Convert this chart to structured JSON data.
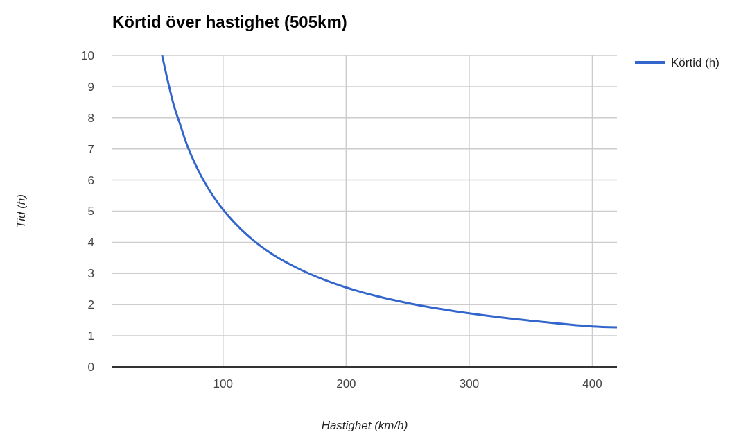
{
  "chart_data": {
    "type": "line",
    "title": "Körtid över hastighet (505km)",
    "xlabel": "Hastighet (km/h)",
    "ylabel": "Tid (h)",
    "x": [
      50.5,
      55,
      60,
      65,
      70,
      80,
      90,
      100,
      110,
      120,
      140,
      160,
      180,
      200,
      225,
      250,
      275,
      300,
      350,
      400,
      420
    ],
    "series": [
      {
        "name": "Körtid (h)",
        "color": "#3366cc",
        "values": [
          10,
          9.2,
          8.4,
          7.8,
          7.2,
          6.3,
          5.6,
          5.05,
          4.6,
          4.22,
          3.62,
          3.18,
          2.83,
          2.55,
          2.27,
          2.05,
          1.87,
          1.72,
          1.48,
          1.3,
          1.27
        ]
      }
    ],
    "xlim": [
      10,
      420
    ],
    "xticks": [
      100,
      200,
      300,
      400
    ],
    "ylim": [
      0,
      10
    ],
    "yticks": [
      0,
      1,
      2,
      3,
      4,
      5,
      6,
      7,
      8,
      9,
      10
    ],
    "grid": true,
    "legend": "top right"
  }
}
